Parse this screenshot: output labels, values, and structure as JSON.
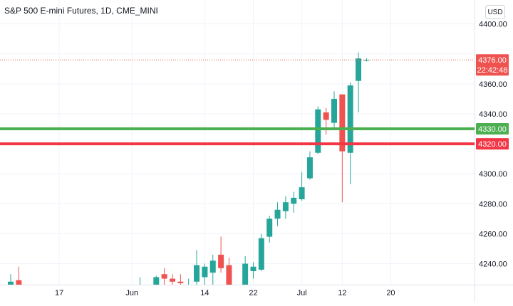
{
  "header": {
    "title": "S&P 500 E-mini Futures, 1D, CME_MINI",
    "currency_button": "USD"
  },
  "colors": {
    "up": "#26a69a",
    "down": "#ef5350",
    "support_line": "#4caf50",
    "resistance_line": "#f23645",
    "grid": "#f0f3fa",
    "axis_text": "#131722"
  },
  "price_label": {
    "price": "4376.00",
    "countdown": "22:42:48"
  },
  "chart_data": {
    "type": "candlestick",
    "title": "S&P 500 E-mini Futures, 1D, CME_MINI",
    "currency": "USD",
    "ylim": [
      4226,
      4416
    ],
    "y_ticks": [
      4240,
      4260,
      4280,
      4300,
      4320,
      4340,
      4360,
      4380,
      4400
    ],
    "y_tick_labels": [
      "4240.00",
      "4260.00",
      "4280.00",
      "4300.00",
      "4320.00",
      "4340.00",
      "4360.00",
      "",
      "4400.00"
    ],
    "x_ticks": [
      {
        "bar": 6,
        "label": "17"
      },
      {
        "bar": 15,
        "label": "Jun"
      },
      {
        "bar": 24,
        "label": "14"
      },
      {
        "bar": 30,
        "label": "22"
      },
      {
        "bar": 36,
        "label": "Jul"
      },
      {
        "bar": 41,
        "label": "12"
      },
      {
        "bar": 47,
        "label": "20"
      }
    ],
    "bars": [
      {
        "o": 4226,
        "h": 4233,
        "l": 4226,
        "c": 4228
      },
      {
        "o": 4229,
        "h": 4238,
        "l": 4226,
        "c": 4226
      },
      null,
      null,
      null,
      null,
      null,
      null,
      null,
      null,
      null,
      null,
      null,
      null,
      null,
      null,
      {
        "o": 4226,
        "h": 4231,
        "l": 4226,
        "c": 4226
      },
      null,
      {
        "o": 4226,
        "h": 4232,
        "l": 4226,
        "c": 4231
      },
      {
        "o": 4233,
        "h": 4237,
        "l": 4226,
        "c": 4230
      },
      {
        "o": 4230,
        "h": 4233,
        "l": 4226,
        "c": 4228
      },
      {
        "o": 4228,
        "h": 4233,
        "l": 4226,
        "c": 4227
      },
      {
        "o": 4226,
        "h": 4230,
        "l": 4226,
        "c": 4226
      },
      {
        "o": 4228,
        "h": 4249,
        "l": 4226,
        "c": 4239
      },
      {
        "o": 4231,
        "h": 4240,
        "l": 4226,
        "c": 4238
      },
      {
        "o": 4234,
        "h": 4246,
        "l": 4226,
        "c": 4242
      },
      {
        "o": 4246,
        "h": 4258,
        "l": 4234,
        "c": 4237
      },
      {
        "o": 4239,
        "h": 4244,
        "l": 4226,
        "c": 4226
      },
      null,
      {
        "o": 4226,
        "h": 4245,
        "l": 4226,
        "c": 4240
      },
      {
        "o": 4235,
        "h": 4241,
        "l": 4230,
        "c": 4238
      },
      {
        "o": 4236,
        "h": 4260,
        "l": 4235,
        "c": 4257
      },
      {
        "o": 4258,
        "h": 4272,
        "l": 4254,
        "c": 4270
      },
      {
        "o": 4270,
        "h": 4281,
        "l": 4265,
        "c": 4276
      },
      {
        "o": 4275,
        "h": 4285,
        "l": 4270,
        "c": 4281
      },
      {
        "o": 4280,
        "h": 4288,
        "l": 4274,
        "c": 4284
      },
      {
        "o": 4283,
        "h": 4301,
        "l": 4282,
        "c": 4291
      },
      {
        "o": 4297,
        "h": 4315,
        "l": 4296,
        "c": 4311
      },
      {
        "o": 4314,
        "h": 4345,
        "l": 4313,
        "c": 4343
      },
      {
        "o": 4341,
        "h": 4344,
        "l": 4326,
        "c": 4336
      },
      {
        "o": 4334,
        "h": 4355,
        "l": 4329,
        "c": 4350
      },
      {
        "o": 4353,
        "h": 4353,
        "l": 4281,
        "c": 4315
      },
      {
        "o": 4314,
        "h": 4361,
        "l": 4293,
        "c": 4359
      },
      {
        "o": 4362,
        "h": 4381,
        "l": 4341,
        "c": 4377
      },
      {
        "o": 4376,
        "h": 4377,
        "l": 4375,
        "c": 4376
      }
    ],
    "horizontal_lines": [
      {
        "price": 4376.0,
        "label": "4376.00",
        "style": "dotted",
        "color_key": "down"
      },
      {
        "price": 4330.0,
        "label": "4330.00",
        "style": "solid",
        "color_key": "support_line"
      },
      {
        "price": 4320.0,
        "label": "4320.00",
        "style": "solid",
        "color_key": "resistance_line"
      }
    ]
  }
}
